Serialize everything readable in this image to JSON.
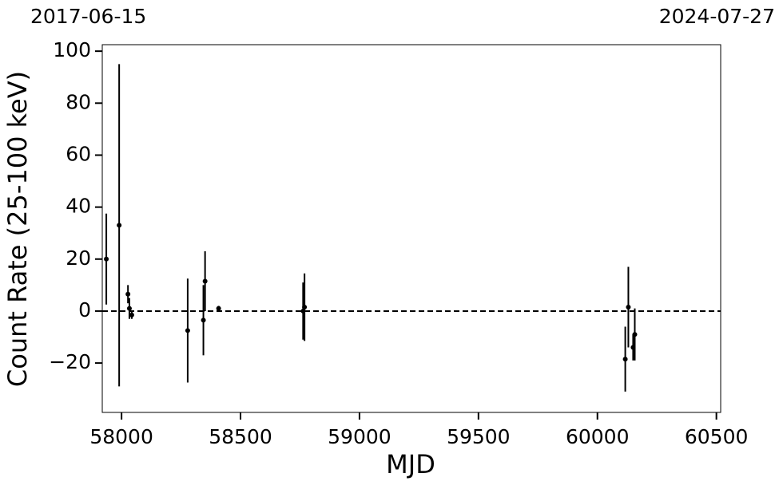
{
  "chart_data": {
    "type": "errorbar",
    "annotations": [
      "2017-06-15",
      "2024-07-27"
    ],
    "xlabel": "MJD",
    "ylabel": "Count Rate (25-100 keV)",
    "x": [
      57936,
      57990,
      58027,
      58033,
      58043,
      58278,
      58344,
      58351,
      58408,
      58763,
      58769,
      60117,
      60130,
      60150,
      60157
    ],
    "series": [
      {
        "color": "#000000",
        "values": [
          20,
          33,
          6.5,
          1,
          -1.5,
          -7.5,
          -3.5,
          11.5,
          1,
          0,
          1.5,
          -18.5,
          1.5,
          -14,
          -9
        ],
        "errors": [
          17.5,
          62,
          3.5,
          4,
          1.5,
          20,
          13.5,
          11.5,
          1,
          11,
          13,
          12.5,
          15.5,
          5,
          10
        ]
      }
    ],
    "xlim": [
      57919,
      60518
    ],
    "xticks": [
      58000,
      58500,
      59000,
      59500,
      60000,
      60500
    ],
    "ylim": [
      -39,
      102.5
    ],
    "yticks": [
      {
        "value": -20,
        "label": "−20"
      },
      0,
      20,
      40,
      60,
      80,
      100
    ],
    "hline": 0
  }
}
